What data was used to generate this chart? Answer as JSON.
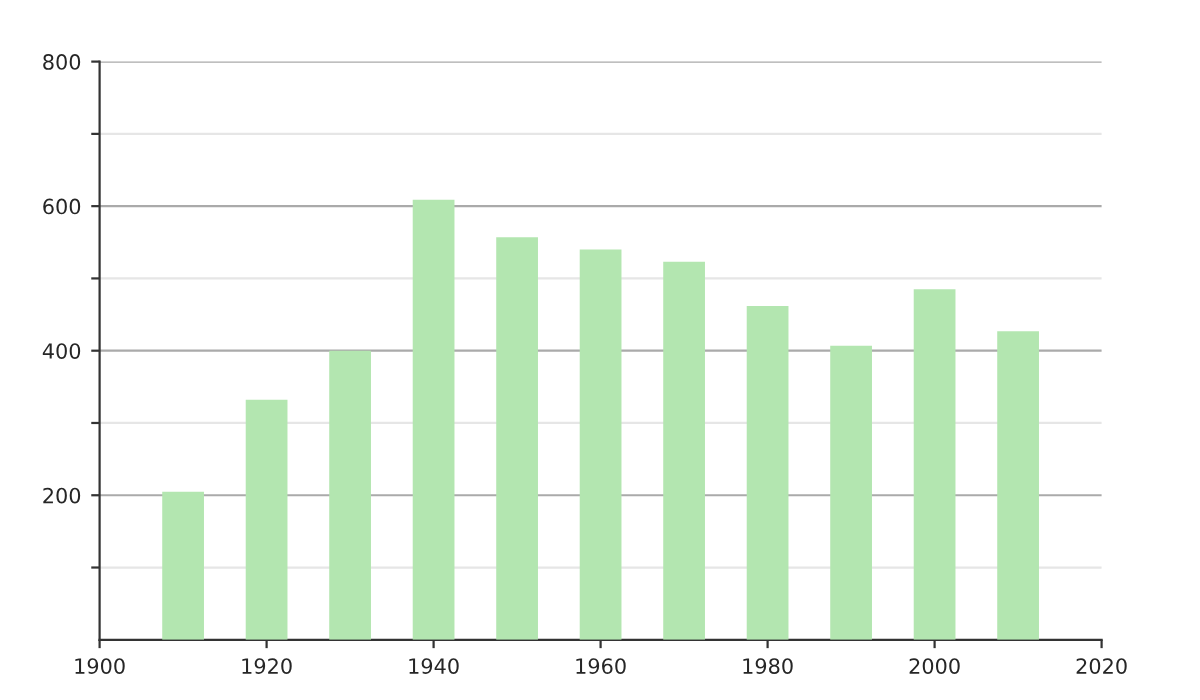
{
  "chart_data": {
    "type": "bar",
    "x": [
      1910,
      1920,
      1930,
      1940,
      1950,
      1960,
      1970,
      1980,
      1990,
      2000,
      2010
    ],
    "values": [
      205,
      332,
      400,
      609,
      557,
      540,
      523,
      462,
      407,
      485,
      427
    ],
    "color": "#b3e6b0",
    "xlim": [
      1900,
      2020
    ],
    "xticks": [
      1900,
      1920,
      1940,
      1960,
      1980,
      2000,
      2020
    ],
    "ylim": [
      0,
      800
    ],
    "yticks": [
      {
        "value": 100,
        "label": null
      },
      200,
      {
        "value": 300,
        "label": null
      },
      400,
      {
        "value": 500,
        "label": null
      },
      600,
      {
        "value": 700,
        "label": null
      },
      800
    ],
    "grid": "y"
  }
}
